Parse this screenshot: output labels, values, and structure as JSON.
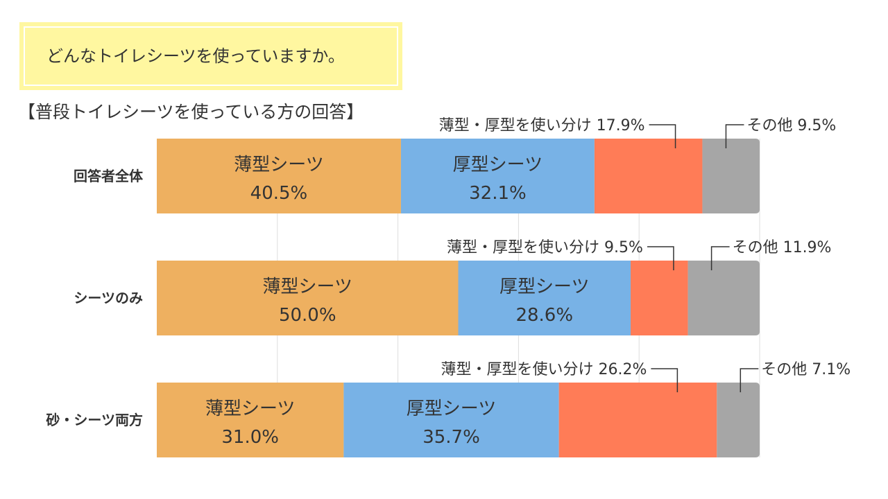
{
  "question": "どんなトイレシーツを使っていますか。",
  "subtitle": "【普段トイレシーツを使っている方の回答】",
  "colors": {
    "thin": "#eeb060",
    "thick": "#78b2e6",
    "both": "#ff7c57",
    "other": "#a6a6a6",
    "grid": "#dddddd",
    "leader": "#333333",
    "question_bg": "#fff7a0"
  },
  "chart_data": {
    "type": "bar",
    "orientation": "horizontal",
    "stacked": true,
    "normalized_percent": true,
    "xlim": [
      0,
      100
    ],
    "grid": true,
    "categories": [
      "回答者全体",
      "シーツのみ",
      "砂・シーツ両方"
    ],
    "series": [
      {
        "key": "thin",
        "name": "薄型シーツ",
        "values": [
          40.5,
          50.0,
          31.0
        ]
      },
      {
        "key": "thick",
        "name": "厚型シーツ",
        "values": [
          32.1,
          28.6,
          35.7
        ]
      },
      {
        "key": "both",
        "name": "薄型・厚型を使い分け",
        "values": [
          17.9,
          9.5,
          26.2
        ]
      },
      {
        "key": "other",
        "name": "その他",
        "values": [
          9.5,
          11.9,
          7.1
        ]
      }
    ],
    "value_labels": [
      [
        "40.5%",
        "32.1%",
        "17.9%",
        "9.5%"
      ],
      [
        "50.0%",
        "28.6%",
        "9.5%",
        "11.9%"
      ],
      [
        "31.0%",
        "35.7%",
        "26.2%",
        "7.1%"
      ]
    ]
  }
}
